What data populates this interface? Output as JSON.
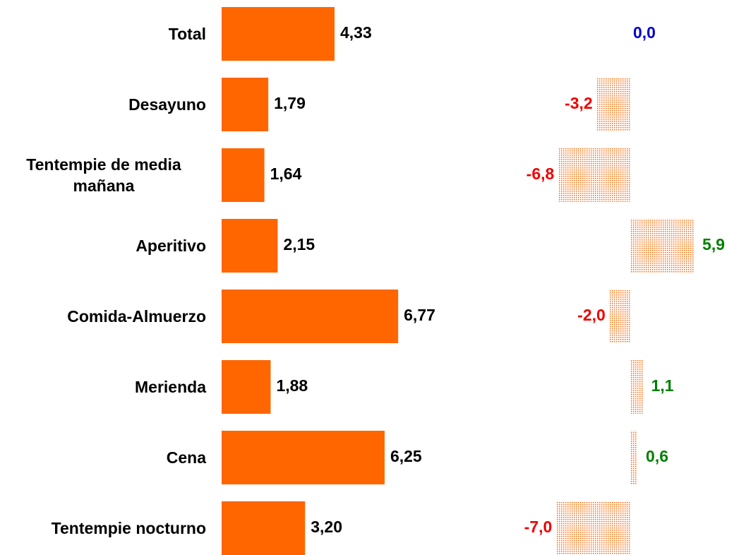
{
  "chart_data": [
    {
      "type": "bar",
      "categories": [
        "Total",
        "Desayuno",
        "Tentempie de media mañana",
        "Aperitivo",
        "Comida-Almuerzo",
        "Merienda",
        "Cena",
        "Tentempie nocturno"
      ],
      "values": [
        4.33,
        1.79,
        1.64,
        2.15,
        6.77,
        1.88,
        6.25,
        3.2
      ],
      "value_labels": [
        "4,33",
        "1,79",
        "1,64",
        "2,15",
        "6,77",
        "1,88",
        "6,25",
        "3,20"
      ],
      "color": "#ff6600"
    },
    {
      "type": "bar",
      "values": [
        0.0,
        -3.2,
        -6.8,
        5.9,
        -2.0,
        1.1,
        0.6,
        -7.0
      ],
      "value_labels": [
        "0,0",
        "-3,2",
        "-6,8",
        "5,9",
        "-2,0",
        "1,1",
        "0,6",
        "-7,0"
      ],
      "color": "#ff6600",
      "pattern": "dotted",
      "negative_color": "#ee0000",
      "positive_color": "#008000",
      "zero_color": "#0000cc"
    }
  ]
}
